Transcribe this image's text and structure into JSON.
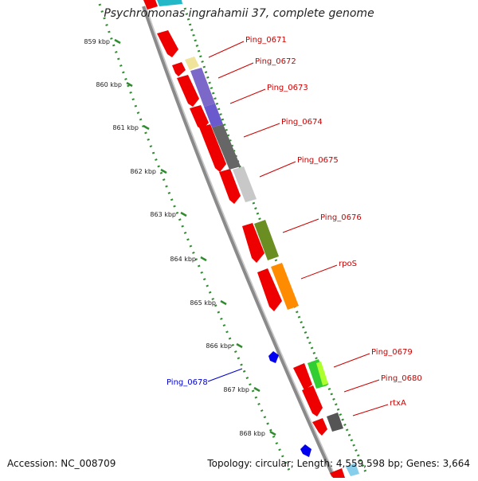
{
  "title": "Psychromonas ingrahamii 37, complete genome",
  "footer": {
    "accession": "Accession: NC_008709",
    "stats": "Topology: circular; Length: 4,559,598 bp; Genes: 3,664"
  },
  "colors": {
    "ruler": "#2e8b2e",
    "gene_red": "#ee0000",
    "forward_label": "#cc0000",
    "reverse_label": "#0000cc",
    "backbone": "#8a8a8a"
  },
  "ruler": {
    "unit": "kbp",
    "ticks": [
      {
        "kbp": 859,
        "label": "859 kbp"
      },
      {
        "kbp": 860,
        "label": "860 kbp"
      },
      {
        "kbp": 861,
        "label": "861 kbp"
      },
      {
        "kbp": 862,
        "label": "862 kbp"
      },
      {
        "kbp": 863,
        "label": "863 kbp"
      },
      {
        "kbp": 864,
        "label": "864 kbp"
      },
      {
        "kbp": 865,
        "label": "865 kbp"
      },
      {
        "kbp": 866,
        "label": "866 kbp"
      },
      {
        "kbp": 867,
        "label": "867 kbp"
      },
      {
        "kbp": 868,
        "label": "868 kbp"
      }
    ]
  },
  "labels": [
    {
      "text": "Ping_0671",
      "strand": "forward"
    },
    {
      "text": "Ping_0672",
      "strand": "forward"
    },
    {
      "text": "Ping_0673",
      "strand": "forward"
    },
    {
      "text": "Ping_0674",
      "strand": "forward"
    },
    {
      "text": "Ping_0675",
      "strand": "forward"
    },
    {
      "text": "Ping_0676",
      "strand": "forward"
    },
    {
      "text": "rpoS",
      "strand": "forward"
    },
    {
      "text": "Ping_0678",
      "strand": "reverse"
    },
    {
      "text": "Ping_0679",
      "strand": "forward"
    },
    {
      "text": "Ping_0680",
      "strand": "forward"
    },
    {
      "text": "rtxA",
      "strand": "forward"
    }
  ]
}
